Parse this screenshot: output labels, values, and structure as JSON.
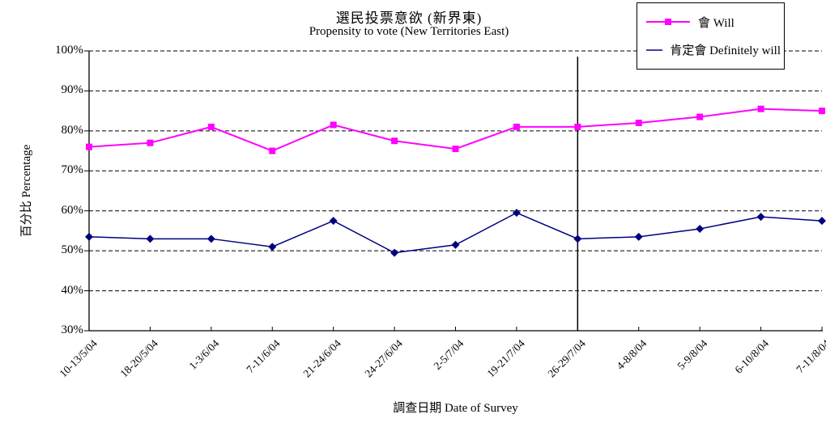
{
  "chart_data": {
    "type": "line",
    "title": "選民投票意欲 (新界東)",
    "subtitle": "Propensity to vote (New Territories East)",
    "ylabel": "百分比 Percentage",
    "xlabel": "調查日期 Date of Survey",
    "categories": [
      "10-13/5/04",
      "18-20/5/04",
      "1-3/6/04",
      "7-11/6/04",
      "21-24/6/04",
      "24-27/6/04",
      "2-5/7/04",
      "19-21/7/04",
      "26-29/7/04",
      "4-8/8/04",
      "5-9/8/04",
      "6-10/8/04",
      "7-11/8/04"
    ],
    "series": [
      {
        "name": "會 Will",
        "color": "#FF00FF",
        "marker": "square",
        "values": [
          76,
          77,
          81,
          75,
          81.5,
          77.5,
          75.5,
          81,
          81,
          82,
          83.5,
          85.5,
          85
        ]
      },
      {
        "name": "肯定會 Definitely will",
        "color": "#000080",
        "marker": "diamond",
        "values": [
          53.5,
          53,
          53,
          51,
          57.5,
          49.5,
          51.5,
          59.5,
          53,
          53.5,
          55.5,
          58.5,
          57.5
        ]
      }
    ],
    "ylim": [
      30,
      100
    ],
    "ytick_step": 10,
    "ytick_suffix": "%",
    "grid": "horizontal-dashed",
    "legend_position": "top-right",
    "vertical_line_at_category": "26-29/7/04",
    "axis_color": "#000000",
    "background_color": "#FFFFFF"
  }
}
